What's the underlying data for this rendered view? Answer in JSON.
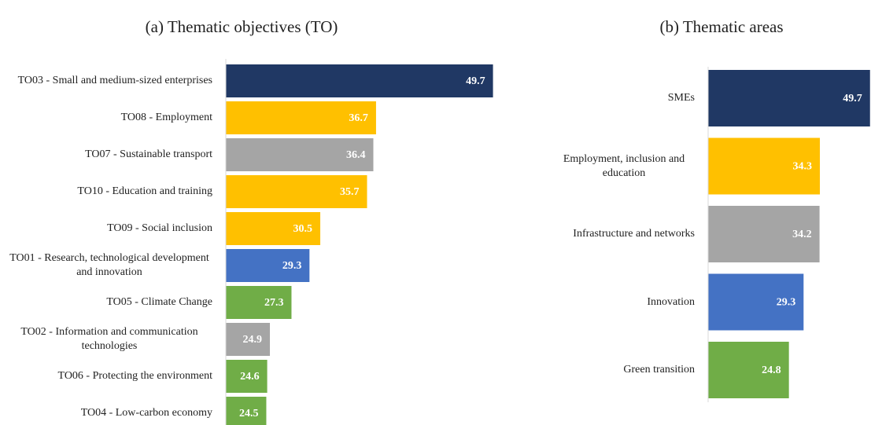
{
  "chart_data": [
    {
      "type": "bar",
      "orientation": "horizontal",
      "title": "(a) Thematic objectives (TO)",
      "categories": [
        "TO03 - Small and medium-sized enterprises",
        "TO08 - Employment",
        "TO07 - Sustainable transport",
        "TO10 - Education and training",
        "TO09 - Social inclusion",
        "TO01 - Research, technological development and innovation",
        "TO05 - Climate Change",
        "TO02 - Information and communication technologies",
        "TO06 - Protecting the environment",
        "TO04 - Low-carbon economy"
      ],
      "values": [
        49.7,
        36.7,
        36.4,
        35.7,
        30.5,
        29.3,
        27.3,
        24.9,
        24.6,
        24.5
      ],
      "colors": [
        "#203864",
        "#ffc000",
        "#a5a5a5",
        "#ffc000",
        "#ffc000",
        "#4472c4",
        "#70ad47",
        "#a5a5a5",
        "#70ad47",
        "#70ad47"
      ],
      "xlim": [
        20,
        50
      ]
    },
    {
      "type": "bar",
      "orientation": "horizontal",
      "title": "(b) Thematic areas",
      "categories": [
        "SMEs",
        "Employment, inclusion and education",
        "Infrastructure and networks",
        "Innovation",
        "Green transition"
      ],
      "values": [
        49.7,
        34.3,
        34.2,
        29.3,
        24.8
      ],
      "colors": [
        "#203864",
        "#ffc000",
        "#a5a5a5",
        "#4472c4",
        "#70ad47"
      ],
      "xlim": [
        0,
        50
      ]
    }
  ]
}
